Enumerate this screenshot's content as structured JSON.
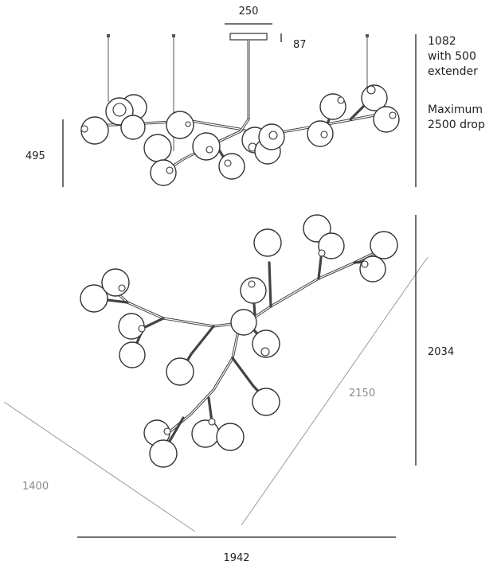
{
  "dimensions": {
    "canopy_width": "250",
    "canopy_height": "87",
    "height_line1": "1082",
    "height_line2": "with 500",
    "height_line3": "extender",
    "max_line1": "Maximum",
    "max_line2": "2500 drop",
    "side_height": "495",
    "plan_depth": "2034",
    "plan_diagonal": "2150",
    "plan_left_side": "1400",
    "plan_width": "1942"
  }
}
